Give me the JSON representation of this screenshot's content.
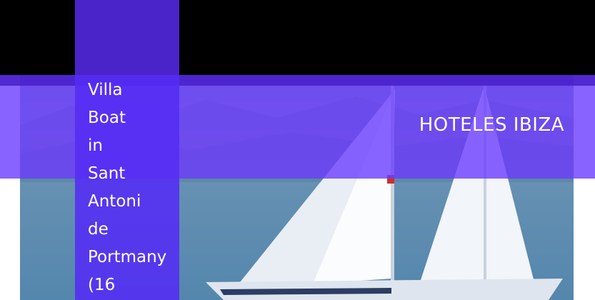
{
  "hero": {
    "image_subject": "sailboat"
  },
  "header": {
    "brand": "HOTELES IBIZA"
  },
  "listing": {
    "title": "Villa Boat in Sant Antoni de Portmany (16"
  },
  "colors": {
    "overlay_purple": "#6a3cff",
    "panel_purple": "#542cf5",
    "top_bar": "#000000",
    "text": "#ffffff"
  }
}
